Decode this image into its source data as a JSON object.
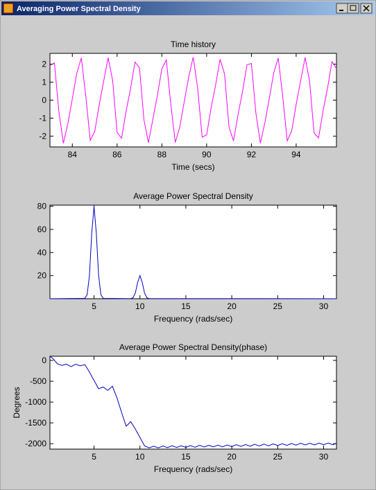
{
  "window": {
    "title": "Averaging Power Spectral Density"
  },
  "chart_data": [
    {
      "type": "line",
      "title": "Time history",
      "x_label": "Time (secs)",
      "color": "#ff00ff",
      "x": [
        83.0,
        83.2,
        83.4,
        83.6,
        83.8,
        84.0,
        84.2,
        84.4,
        84.6,
        84.8,
        85.0,
        85.2,
        85.4,
        85.6,
        85.8,
        86.0,
        86.2,
        86.4,
        86.6,
        86.8,
        87.0,
        87.2,
        87.4,
        87.6,
        87.8,
        88.0,
        88.2,
        88.4,
        88.6,
        88.8,
        89.0,
        89.2,
        89.4,
        89.6,
        89.8,
        90.0,
        90.2,
        90.4,
        90.6,
        90.8,
        91.0,
        91.2,
        91.4,
        91.6,
        91.8,
        92.0,
        92.2,
        92.4,
        92.6,
        92.8,
        93.0,
        93.2,
        93.4,
        93.6,
        93.8,
        94.0,
        94.2,
        94.4,
        94.6,
        94.8,
        95.0,
        95.2,
        95.4,
        95.6,
        95.8
      ],
      "values": [
        1.93,
        2.07,
        -0.65,
        -2.39,
        -1.3,
        0.08,
        1.5,
        2.35,
        0.25,
        -2.23,
        -1.74,
        -0.27,
        1.05,
        2.36,
        1.1,
        -1.8,
        -2.12,
        -0.63,
        0.63,
        2.12,
        1.8,
        -1.1,
        -2.36,
        -1.05,
        0.26,
        1.74,
        2.24,
        -0.24,
        -2.35,
        -1.5,
        -0.08,
        1.29,
        2.39,
        0.66,
        -2.06,
        -1.93,
        -0.43,
        0.84,
        2.27,
        1.46,
        -1.5,
        -2.26,
        -0.83,
        0.45,
        1.96,
        2.04,
        -0.71,
        -2.39,
        -1.27,
        0.1,
        1.53,
        2.34,
        0.19,
        -2.26,
        -1.71,
        -0.24,
        1.08,
        2.37,
        1.05,
        -1.83,
        -2.1,
        -0.61,
        0.66,
        2.14,
        1.76
      ],
      "xlim": [
        83,
        95.8
      ],
      "ylim": [
        -2.6,
        2.6
      ],
      "xticks": [
        84,
        86,
        88,
        90,
        92,
        94
      ],
      "yticks": [
        -2,
        -1,
        0,
        1,
        2
      ]
    },
    {
      "type": "line",
      "title": "Average Power Spectral Density",
      "x_label": "Frequency (rads/sec)",
      "color": "#0000c0",
      "x": [
        0.2,
        4.0,
        4.25,
        4.5,
        4.75,
        5.0,
        5.25,
        5.5,
        5.75,
        6.0,
        9.0,
        9.25,
        9.5,
        9.75,
        10.0,
        10.25,
        10.5,
        10.75,
        11.0,
        31.4
      ],
      "values": [
        0,
        0.3,
        3.5,
        20,
        56.6,
        80,
        56.6,
        20,
        3.5,
        0.3,
        0.1,
        0.9,
        5,
        14.1,
        20,
        14.1,
        5,
        0.9,
        0.1,
        0
      ],
      "xlim": [
        0.2,
        31.4
      ],
      "ylim": [
        0,
        81
      ],
      "xticks": [
        5,
        10,
        15,
        20,
        25,
        30
      ],
      "yticks": [
        20,
        40,
        60,
        80
      ]
    },
    {
      "type": "line",
      "title": "Average Power Spectral Density(phase)",
      "x_label": "Frequency (rads/sec)",
      "y_label": "Degrees",
      "color": "#0000c0",
      "x": [
        0.2,
        0.5,
        1,
        1.5,
        2,
        2.5,
        3,
        3.5,
        4,
        4.5,
        5,
        5.5,
        6,
        6.5,
        7,
        7.5,
        8,
        8.5,
        9,
        9.5,
        10,
        10.5,
        11,
        11.5,
        12,
        12.5,
        13,
        13.5,
        14,
        14.5,
        15,
        15.5,
        16,
        16.5,
        17,
        17.5,
        18,
        18.5,
        19,
        19.5,
        20,
        20.5,
        21,
        21.5,
        22,
        22.5,
        23,
        23.5,
        24,
        24.5,
        25,
        25.5,
        26,
        26.5,
        27,
        27.5,
        28,
        28.5,
        29,
        29.5,
        30,
        30.5,
        31,
        31.4
      ],
      "values": [
        100,
        50,
        -80,
        -120,
        -90,
        -150,
        -90,
        -130,
        -100,
        -280,
        -480,
        -680,
        -640,
        -720,
        -620,
        -900,
        -1250,
        -1580,
        -1470,
        -1650,
        -1850,
        -2050,
        -2100,
        -2060,
        -2100,
        -2055,
        -2095,
        -2050,
        -2090,
        -2050,
        -2090,
        -2045,
        -2085,
        -2040,
        -2080,
        -2040,
        -2075,
        -2035,
        -2075,
        -2030,
        -2070,
        -2025,
        -2065,
        -2020,
        -2060,
        -2015,
        -2055,
        -2010,
        -2050,
        -2005,
        -2045,
        -2000,
        -2040,
        -1995,
        -2035,
        -1990,
        -2030,
        -1990,
        -2030,
        -1985,
        -2025,
        -1985,
        -2025,
        -1990
      ],
      "xlim": [
        0.2,
        31.4
      ],
      "ylim": [
        -2130,
        100
      ],
      "xticks": [
        5,
        10,
        15,
        20,
        25,
        30
      ],
      "yticks": [
        -2000,
        -1500,
        -1000,
        -500,
        0
      ]
    }
  ]
}
